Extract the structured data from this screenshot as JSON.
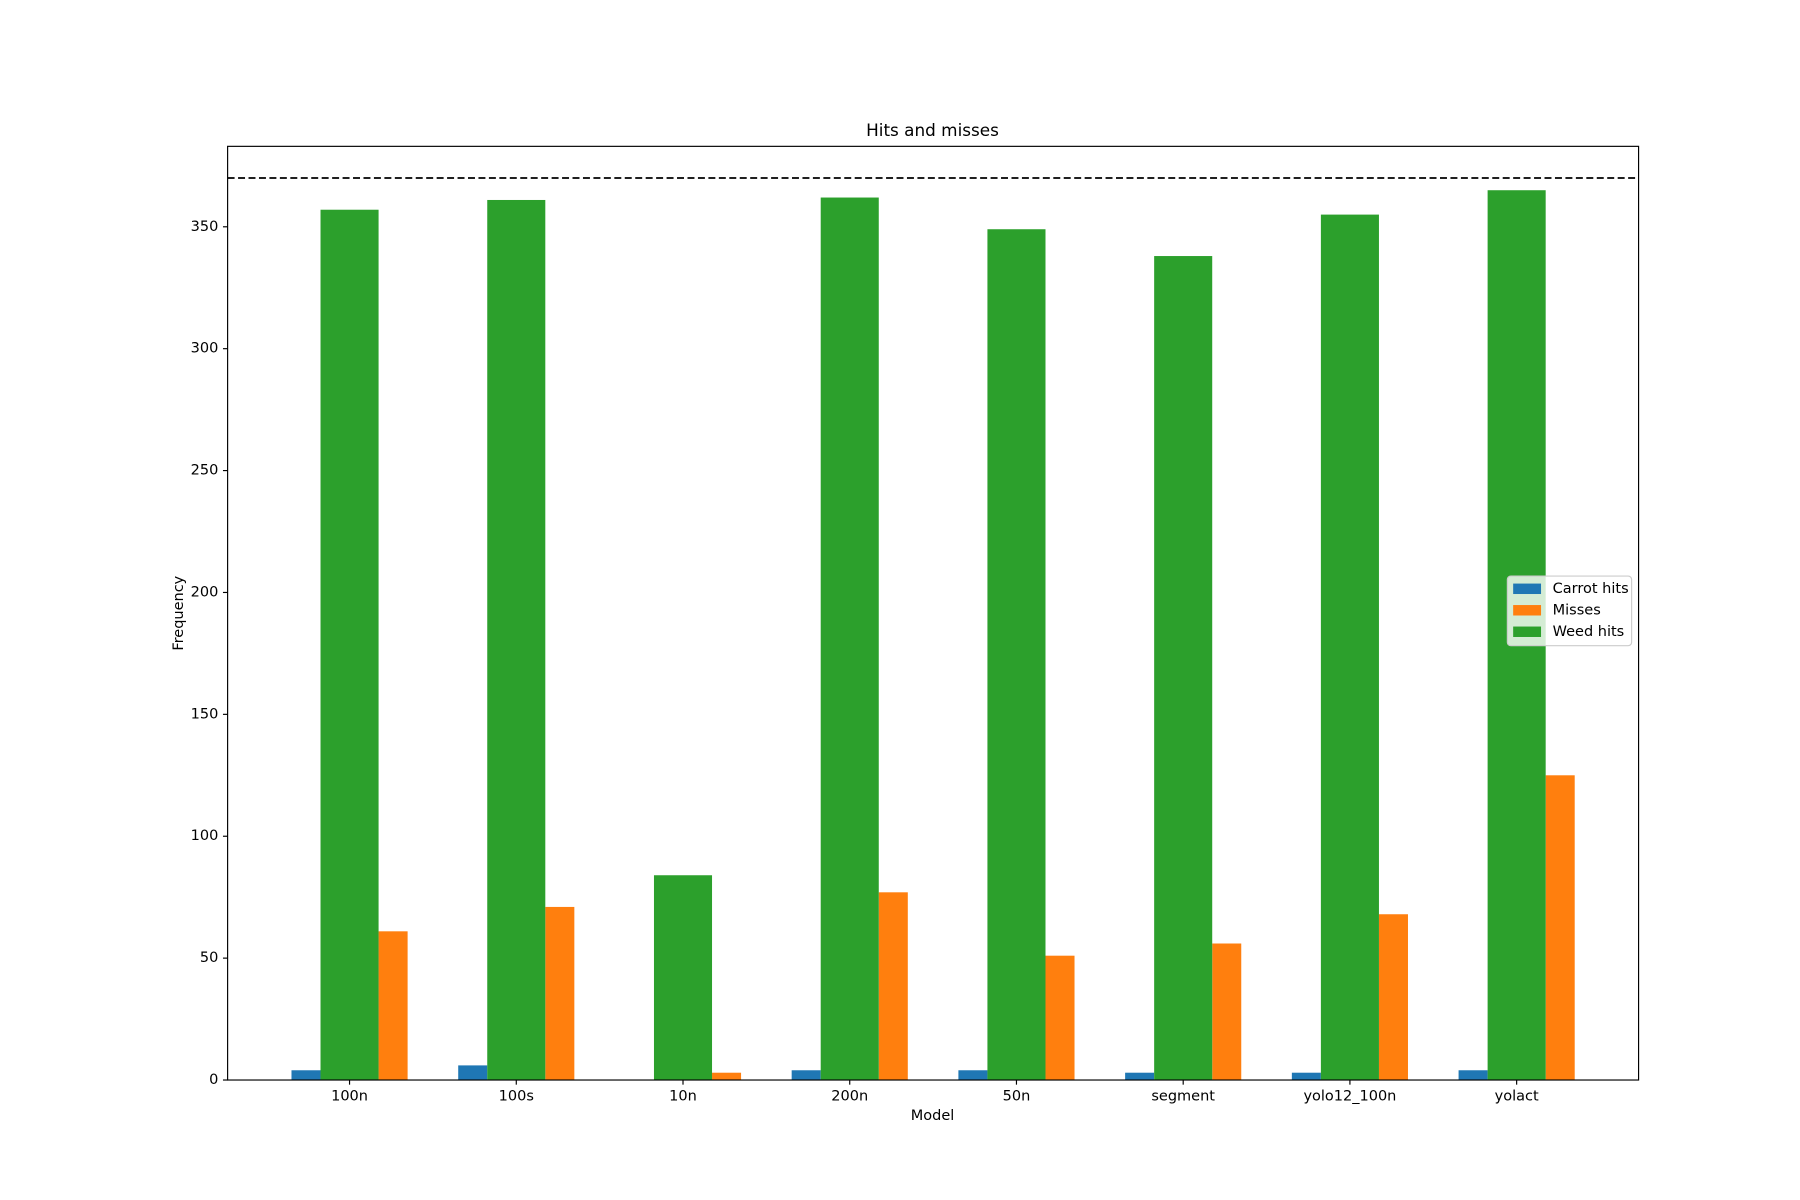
{
  "chart_data": {
    "type": "bar",
    "title": "Hits and misses",
    "x_label": "Model",
    "y_label": "Frequency",
    "categories": [
      "100n",
      "100s",
      "10n",
      "200n",
      "50n",
      "segment",
      "yolo12_100n",
      "yolact"
    ],
    "series": [
      {
        "name": "Carrot hits",
        "color": "#1f77b4",
        "values": [
          4,
          6,
          0,
          4,
          4,
          3,
          3,
          4
        ]
      },
      {
        "name": "Misses",
        "color": "#ff7f0e",
        "values": [
          61,
          71,
          3,
          77,
          51,
          56,
          68,
          125
        ]
      },
      {
        "name": "Weed hits",
        "color": "#2ca02c",
        "values": [
          357,
          361,
          84,
          362,
          349,
          338,
          355,
          365
        ]
      }
    ],
    "reference_line": 370,
    "ylim": [
      0,
      383
    ],
    "yticks": [
      0,
      50,
      100,
      150,
      200,
      250,
      300,
      350
    ],
    "legend": "center right",
    "grid": false
  }
}
